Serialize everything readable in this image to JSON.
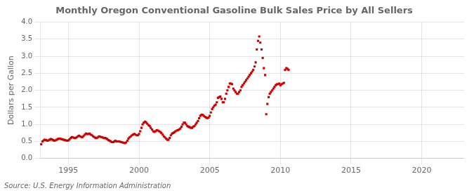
{
  "chart_data": {
    "type": "scatter",
    "title": "Monthly Oregon Conventional Gasoline Bulk Sales Price by All Sellers",
    "ylabel": "Dollars per Gallon",
    "source": "Source: U.S. Energy Information Administration",
    "color": "#cc0000",
    "marker": "square",
    "grid": true,
    "xlim": [
      1993.0,
      2023.0
    ],
    "ylim": [
      0.0,
      4.0
    ],
    "xticks": [
      1995,
      2000,
      2005,
      2010,
      2015,
      2020
    ],
    "yticks": [
      {
        "value": 0.0,
        "label": "0.0"
      },
      0.5,
      {
        "value": 1.0,
        "label": "1.0"
      },
      1.5,
      {
        "value": 2.0,
        "label": "2.0"
      },
      2.5,
      {
        "value": 3.0,
        "label": "3.0"
      },
      3.5,
      {
        "value": 4.0,
        "label": "4.0"
      }
    ],
    "x": [
      1993.08,
      1993.17,
      1993.25,
      1993.33,
      1993.42,
      1993.5,
      1993.58,
      1993.67,
      1993.75,
      1993.83,
      1993.92,
      1994.0,
      1994.08,
      1994.17,
      1994.25,
      1994.33,
      1994.42,
      1994.5,
      1994.58,
      1994.67,
      1994.75,
      1994.83,
      1994.92,
      1995.0,
      1995.08,
      1995.17,
      1995.25,
      1995.33,
      1995.42,
      1995.5,
      1995.58,
      1995.67,
      1995.75,
      1995.83,
      1995.92,
      1996.0,
      1996.08,
      1996.17,
      1996.25,
      1996.33,
      1996.42,
      1996.5,
      1996.58,
      1996.67,
      1996.75,
      1996.83,
      1996.92,
      1997.0,
      1997.08,
      1997.17,
      1997.25,
      1997.33,
      1997.42,
      1997.5,
      1997.58,
      1997.67,
      1997.75,
      1997.83,
      1997.92,
      1998.0,
      1998.08,
      1998.17,
      1998.25,
      1998.33,
      1998.42,
      1998.5,
      1998.58,
      1998.67,
      1998.75,
      1998.83,
      1998.92,
      1999.0,
      1999.08,
      1999.17,
      1999.25,
      1999.33,
      1999.42,
      1999.5,
      1999.58,
      1999.67,
      1999.75,
      1999.83,
      1999.92,
      2000.0,
      2000.08,
      2000.17,
      2000.25,
      2000.33,
      2000.42,
      2000.5,
      2000.58,
      2000.67,
      2000.75,
      2000.83,
      2000.92,
      2001.0,
      2001.08,
      2001.17,
      2001.25,
      2001.33,
      2001.42,
      2001.5,
      2001.58,
      2001.67,
      2001.75,
      2001.83,
      2001.92,
      2002.0,
      2002.08,
      2002.17,
      2002.25,
      2002.33,
      2002.42,
      2002.5,
      2002.58,
      2002.67,
      2002.75,
      2002.83,
      2002.92,
      2003.0,
      2003.08,
      2003.17,
      2003.25,
      2003.33,
      2003.42,
      2003.5,
      2003.58,
      2003.67,
      2003.75,
      2003.83,
      2003.92,
      2004.0,
      2004.08,
      2004.17,
      2004.25,
      2004.33,
      2004.42,
      2004.5,
      2004.58,
      2004.67,
      2004.75,
      2004.83,
      2004.92,
      2005.0,
      2005.08,
      2005.17,
      2005.25,
      2005.33,
      2005.42,
      2005.5,
      2005.58,
      2005.67,
      2005.75,
      2005.83,
      2005.92,
      2006.0,
      2006.08,
      2006.17,
      2006.25,
      2006.33,
      2006.42,
      2006.5,
      2006.58,
      2006.67,
      2006.75,
      2006.83,
      2006.92,
      2007.0,
      2007.08,
      2007.17,
      2007.25,
      2007.33,
      2007.42,
      2007.5,
      2007.58,
      2007.67,
      2007.75,
      2007.83,
      2007.92,
      2008.0,
      2008.08,
      2008.17,
      2008.25,
      2008.33,
      2008.42,
      2008.5,
      2008.58,
      2008.67,
      2008.75,
      2008.83,
      2008.92,
      2009.0,
      2009.08,
      2009.17,
      2009.25,
      2009.33,
      2009.42,
      2009.5,
      2009.58,
      2009.67,
      2009.75,
      2009.83,
      2009.92,
      2010.0,
      2010.08,
      2010.17,
      2010.25,
      2010.33,
      2010.42,
      2010.5,
      2010.58
    ],
    "values": [
      0.42,
      0.5,
      0.53,
      0.55,
      0.54,
      0.52,
      0.53,
      0.55,
      0.57,
      0.56,
      0.54,
      0.52,
      0.53,
      0.55,
      0.57,
      0.58,
      0.58,
      0.57,
      0.56,
      0.55,
      0.54,
      0.53,
      0.52,
      0.53,
      0.56,
      0.6,
      0.63,
      0.62,
      0.6,
      0.6,
      0.62,
      0.65,
      0.67,
      0.65,
      0.63,
      0.63,
      0.66,
      0.7,
      0.73,
      0.72,
      0.72,
      0.73,
      0.7,
      0.68,
      0.65,
      0.63,
      0.6,
      0.6,
      0.62,
      0.65,
      0.64,
      0.63,
      0.62,
      0.6,
      0.6,
      0.59,
      0.57,
      0.54,
      0.52,
      0.5,
      0.48,
      0.48,
      0.5,
      0.52,
      0.5,
      0.5,
      0.5,
      0.49,
      0.48,
      0.47,
      0.46,
      0.45,
      0.47,
      0.52,
      0.58,
      0.62,
      0.65,
      0.68,
      0.7,
      0.72,
      0.7,
      0.68,
      0.68,
      0.72,
      0.8,
      0.9,
      1.0,
      1.05,
      1.08,
      1.06,
      1.02,
      0.98,
      0.95,
      0.9,
      0.85,
      0.8,
      0.78,
      0.8,
      0.83,
      0.82,
      0.8,
      0.78,
      0.75,
      0.7,
      0.65,
      0.62,
      0.58,
      0.55,
      0.55,
      0.6,
      0.68,
      0.73,
      0.75,
      0.77,
      0.8,
      0.82,
      0.83,
      0.85,
      0.88,
      0.93,
      1.0,
      1.05,
      1.05,
      1.0,
      0.95,
      0.93,
      0.92,
      0.9,
      0.9,
      0.93,
      0.95,
      1.0,
      1.05,
      1.1,
      1.18,
      1.25,
      1.28,
      1.28,
      1.25,
      1.22,
      1.2,
      1.18,
      1.2,
      1.25,
      1.35,
      1.45,
      1.5,
      1.55,
      1.58,
      1.65,
      1.78,
      1.8,
      1.82,
      1.75,
      1.65,
      1.65,
      1.75,
      1.9,
      2.0,
      2.1,
      2.2,
      2.2,
      2.18,
      2.05,
      2.0,
      1.95,
      1.9,
      1.9,
      1.95,
      2.0,
      2.1,
      2.15,
      2.2,
      2.25,
      2.3,
      2.35,
      2.4,
      2.45,
      2.5,
      2.55,
      2.6,
      2.7,
      2.82,
      3.2,
      3.45,
      3.58,
      3.4,
      3.2,
      2.95,
      2.65,
      2.45,
      1.3,
      1.6,
      1.8,
      1.9,
      1.95,
      2.0,
      2.05,
      2.1,
      2.15,
      2.18,
      2.18,
      2.2,
      2.15,
      2.18,
      2.2,
      2.22,
      2.6,
      2.65,
      2.63,
      2.6
    ]
  }
}
